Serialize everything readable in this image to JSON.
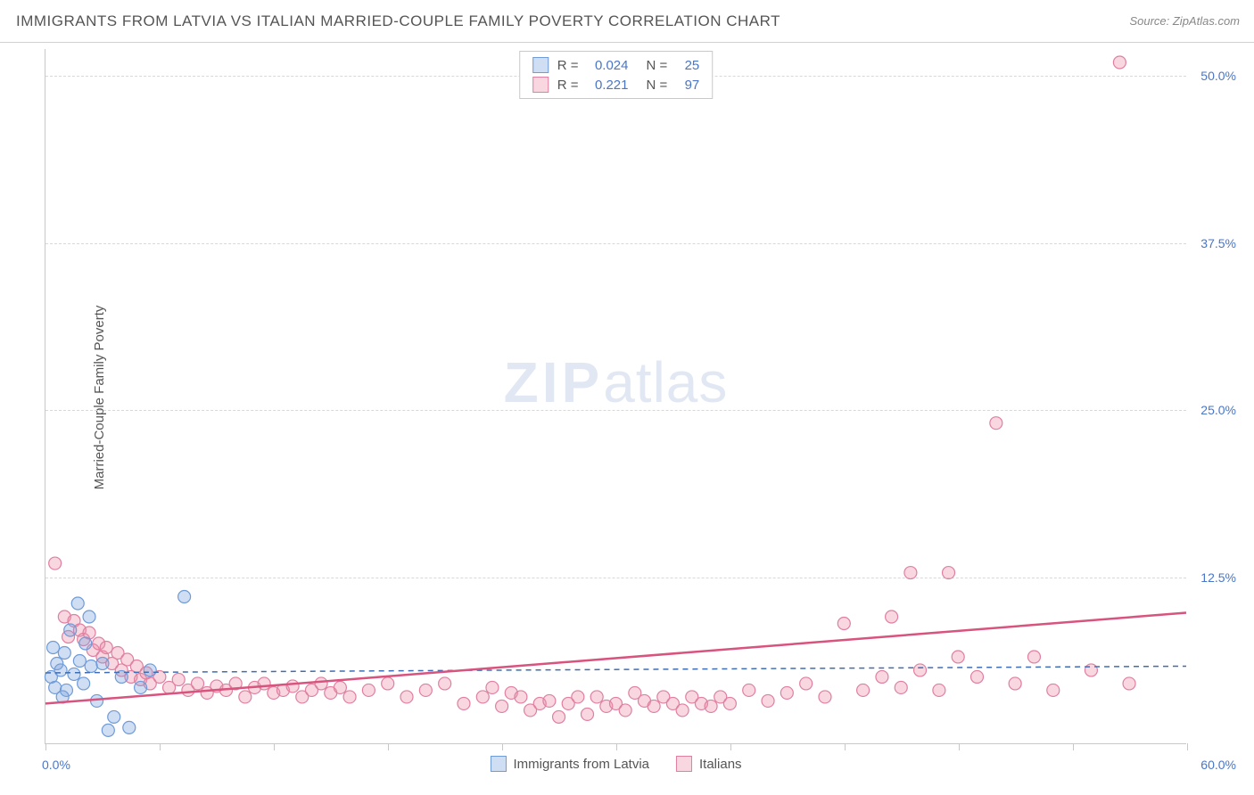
{
  "header": {
    "title": "IMMIGRANTS FROM LATVIA VS ITALIAN MARRIED-COUPLE FAMILY POVERTY CORRELATION CHART",
    "source": "Source: ZipAtlas.com"
  },
  "ylabel": "Married-Couple Family Poverty",
  "watermark": {
    "bold": "ZIP",
    "rest": "atlas"
  },
  "chart": {
    "type": "scatter",
    "xlim": [
      0,
      60
    ],
    "ylim": [
      0,
      52
    ],
    "ytick_labels": [
      "12.5%",
      "25.0%",
      "37.5%",
      "50.0%"
    ],
    "ytick_values": [
      12.5,
      25.0,
      37.5,
      50.0
    ],
    "xtick_values": [
      0,
      6,
      12,
      18,
      24,
      30,
      36,
      42,
      48,
      54,
      60
    ],
    "x_start_label": "0.0%",
    "x_end_label": "60.0%",
    "background_color": "#ffffff",
    "grid_color": "#d8d8d8",
    "axis_color": "#c8c8c8",
    "tick_label_color": "#4a76c7",
    "marker_radius": 7,
    "marker_stroke_width": 1.2,
    "trend_line_width_solid": 2.5,
    "trend_line_width_dashed": 1.5,
    "series": [
      {
        "key": "latvia",
        "label": "Immigrants from Latvia",
        "fill": "rgba(120,160,220,0.35)",
        "stroke": "#6f9bd8",
        "line_color": "#3f6db3",
        "line_dash": "6,5",
        "R": "0.024",
        "N": "25",
        "trend": {
          "x1": 0,
          "y1": 5.3,
          "x2": 60,
          "y2": 5.8
        },
        "points": [
          [
            0.3,
            5.0
          ],
          [
            0.4,
            7.2
          ],
          [
            0.5,
            4.2
          ],
          [
            0.6,
            6.0
          ],
          [
            0.8,
            5.5
          ],
          [
            1.0,
            6.8
          ],
          [
            1.1,
            4.0
          ],
          [
            1.3,
            8.5
          ],
          [
            1.5,
            5.2
          ],
          [
            1.7,
            10.5
          ],
          [
            1.8,
            6.2
          ],
          [
            2.0,
            4.5
          ],
          [
            2.1,
            7.5
          ],
          [
            2.4,
            5.8
          ],
          [
            2.7,
            3.2
          ],
          [
            3.0,
            6.0
          ],
          [
            3.3,
            1.0
          ],
          [
            3.6,
            2.0
          ],
          [
            4.0,
            5.0
          ],
          [
            4.4,
            1.2
          ],
          [
            5.0,
            4.2
          ],
          [
            5.5,
            5.5
          ],
          [
            7.3,
            11.0
          ],
          [
            2.3,
            9.5
          ],
          [
            0.9,
            3.5
          ]
        ]
      },
      {
        "key": "italians",
        "label": "Italians",
        "fill": "rgba(235,140,170,0.35)",
        "stroke": "#e07fa0",
        "line_color": "#d8537d",
        "line_dash": "",
        "R": "0.221",
        "N": "97",
        "trend": {
          "x1": 0,
          "y1": 3.0,
          "x2": 60,
          "y2": 9.8
        },
        "points": [
          [
            0.5,
            13.5
          ],
          [
            1.0,
            9.5
          ],
          [
            1.2,
            8.0
          ],
          [
            1.5,
            9.2
          ],
          [
            1.8,
            8.5
          ],
          [
            2.0,
            7.8
          ],
          [
            2.3,
            8.3
          ],
          [
            2.5,
            7.0
          ],
          [
            2.8,
            7.5
          ],
          [
            3.0,
            6.5
          ],
          [
            3.2,
            7.2
          ],
          [
            3.5,
            6.0
          ],
          [
            3.8,
            6.8
          ],
          [
            4.0,
            5.5
          ],
          [
            4.3,
            6.3
          ],
          [
            4.5,
            5.0
          ],
          [
            4.8,
            5.8
          ],
          [
            5.0,
            4.8
          ],
          [
            5.3,
            5.3
          ],
          [
            5.5,
            4.5
          ],
          [
            6.0,
            5.0
          ],
          [
            6.5,
            4.2
          ],
          [
            7.0,
            4.8
          ],
          [
            7.5,
            4.0
          ],
          [
            8.0,
            4.5
          ],
          [
            8.5,
            3.8
          ],
          [
            9.0,
            4.3
          ],
          [
            9.5,
            4.0
          ],
          [
            10.0,
            4.5
          ],
          [
            10.5,
            3.5
          ],
          [
            11.0,
            4.2
          ],
          [
            11.5,
            4.5
          ],
          [
            12.0,
            3.8
          ],
          [
            12.5,
            4.0
          ],
          [
            13.0,
            4.3
          ],
          [
            13.5,
            3.5
          ],
          [
            14.0,
            4.0
          ],
          [
            14.5,
            4.5
          ],
          [
            15.0,
            3.8
          ],
          [
            15.5,
            4.2
          ],
          [
            16.0,
            3.5
          ],
          [
            17.0,
            4.0
          ],
          [
            18.0,
            4.5
          ],
          [
            19.0,
            3.5
          ],
          [
            20.0,
            4.0
          ],
          [
            21.0,
            4.5
          ],
          [
            22.0,
            3.0
          ],
          [
            23.0,
            3.5
          ],
          [
            23.5,
            4.2
          ],
          [
            24.0,
            2.8
          ],
          [
            24.5,
            3.8
          ],
          [
            25.0,
            3.5
          ],
          [
            25.5,
            2.5
          ],
          [
            26.0,
            3.0
          ],
          [
            26.5,
            3.2
          ],
          [
            27.0,
            2.0
          ],
          [
            27.5,
            3.0
          ],
          [
            28.0,
            3.5
          ],
          [
            28.5,
            2.2
          ],
          [
            29.0,
            3.5
          ],
          [
            29.5,
            2.8
          ],
          [
            30.0,
            3.0
          ],
          [
            30.5,
            2.5
          ],
          [
            31.0,
            3.8
          ],
          [
            31.5,
            3.2
          ],
          [
            32.0,
            2.8
          ],
          [
            32.5,
            3.5
          ],
          [
            33.0,
            3.0
          ],
          [
            33.5,
            2.5
          ],
          [
            34.0,
            3.5
          ],
          [
            34.5,
            3.0
          ],
          [
            35.0,
            2.8
          ],
          [
            35.5,
            3.5
          ],
          [
            36.0,
            3.0
          ],
          [
            37.0,
            4.0
          ],
          [
            38.0,
            3.2
          ],
          [
            39.0,
            3.8
          ],
          [
            40.0,
            4.5
          ],
          [
            41.0,
            3.5
          ],
          [
            42.0,
            9.0
          ],
          [
            43.0,
            4.0
          ],
          [
            44.0,
            5.0
          ],
          [
            44.5,
            9.5
          ],
          [
            45.0,
            4.2
          ],
          [
            45.5,
            12.8
          ],
          [
            46.0,
            5.5
          ],
          [
            47.0,
            4.0
          ],
          [
            47.5,
            12.8
          ],
          [
            48.0,
            6.5
          ],
          [
            49.0,
            5.0
          ],
          [
            50.0,
            24.0
          ],
          [
            51.0,
            4.5
          ],
          [
            52.0,
            6.5
          ],
          [
            53.0,
            4.0
          ],
          [
            55.0,
            5.5
          ],
          [
            56.5,
            51.0
          ],
          [
            57.0,
            4.5
          ]
        ]
      }
    ]
  },
  "legend_top": {
    "r_label": "R =",
    "n_label": "N ="
  }
}
